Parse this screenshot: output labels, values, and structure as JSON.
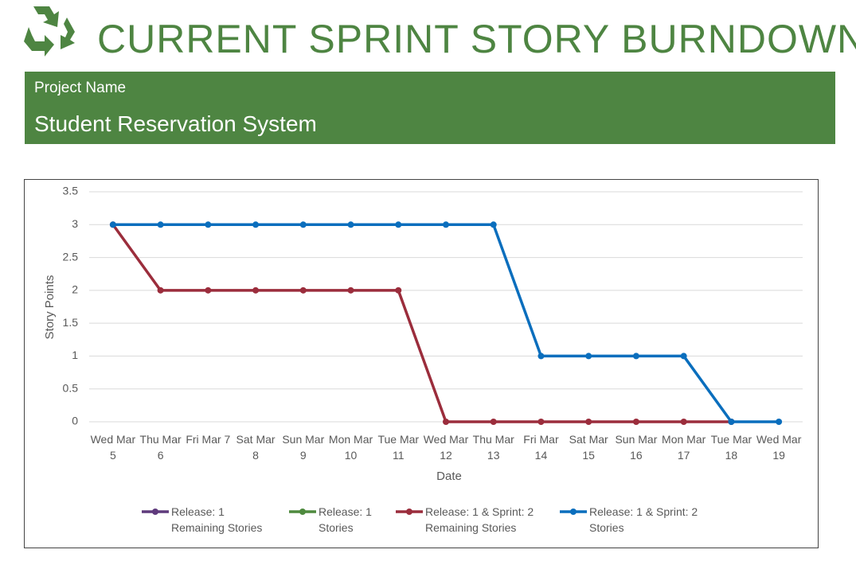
{
  "header": {
    "title": "CURRENT SPRINT STORY BURNDOWN",
    "label": "Project Name",
    "project": "Student Reservation System"
  },
  "chart_data": {
    "type": "line",
    "categories": [
      "Wed Mar 5",
      "Thu Mar 6",
      "Fri Mar 7",
      "Sat Mar 8",
      "Sun Mar 9",
      "Mon Mar 10",
      "Tue Mar 11",
      "Wed Mar 12",
      "Thu Mar 13",
      "Fri Mar 14",
      "Sat Mar 15",
      "Sun Mar 16",
      "Mon Mar 17",
      "Tue Mar 18",
      "Wed Mar 19"
    ],
    "series": [
      {
        "name": "Release: 1 Remaining Stories",
        "color": "#5f3a7c",
        "values": [
          null,
          null,
          null,
          null,
          null,
          null,
          null,
          null,
          null,
          null,
          null,
          null,
          null,
          null,
          null
        ]
      },
      {
        "name": "Release: 1 Stories",
        "color": "#4e8a3e",
        "values": [
          null,
          null,
          null,
          null,
          null,
          null,
          null,
          null,
          null,
          null,
          null,
          null,
          null,
          null,
          null
        ]
      },
      {
        "name": "Release: 1 & Sprint: 2 Remaining Stories",
        "color": "#9b2d3c",
        "values": [
          3,
          2,
          2,
          2,
          2,
          2,
          2,
          0,
          0,
          0,
          0,
          0,
          0,
          0,
          null
        ]
      },
      {
        "name": "Release: 1 & Sprint: 2 Stories",
        "color": "#0a6ebd",
        "values": [
          3,
          3,
          3,
          3,
          3,
          3,
          3,
          3,
          3,
          1,
          1,
          1,
          1,
          0,
          0
        ]
      }
    ],
    "xlabel": "Date",
    "ylabel": "Story Points",
    "ylim": [
      0,
      3.5
    ],
    "yticks": [
      0,
      0.5,
      1,
      1.5,
      2,
      2.5,
      3,
      3.5
    ],
    "grid": true,
    "legend": "bottom"
  }
}
